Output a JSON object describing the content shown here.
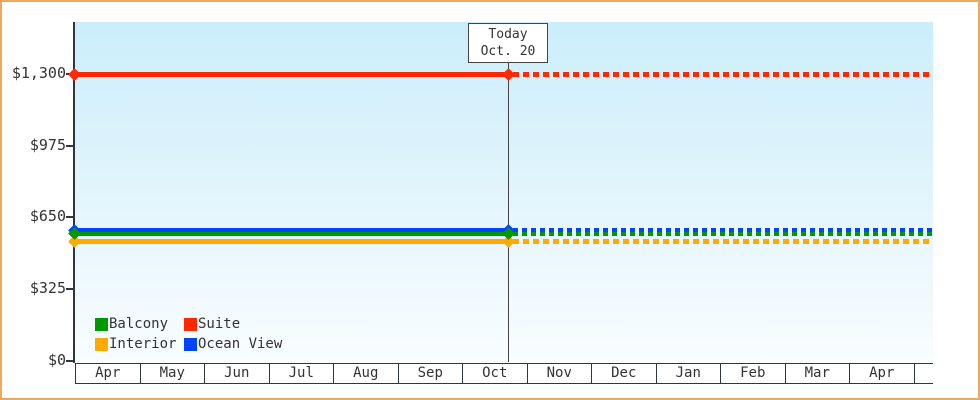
{
  "frame": {
    "border_color": "#efa95f",
    "background": "#ffffff"
  },
  "today_marker": {
    "label": "Today",
    "date": "Oct. 20"
  },
  "y_axis": {
    "tick_labels": [
      "$0",
      "$325",
      "$650",
      "$975",
      "$1,300"
    ],
    "tick_values": [
      0,
      325,
      650,
      975,
      1300
    ]
  },
  "x_axis": {
    "months": [
      "Apr",
      "May",
      "Jun",
      "Jul",
      "Aug",
      "Sep",
      "Oct",
      "Nov",
      "Dec",
      "Jan",
      "Feb",
      "Mar",
      "Apr"
    ]
  },
  "legend": {
    "items": [
      {
        "label": "Balcony",
        "color": "#009900"
      },
      {
        "label": "Suite",
        "color": "#ff2800"
      },
      {
        "label": "Interior",
        "color": "#ffaa00"
      },
      {
        "label": "Ocean View",
        "color": "#0044ff"
      }
    ]
  },
  "chart_data": {
    "type": "line",
    "title": "",
    "x_categories": [
      "Apr",
      "May",
      "Jun",
      "Jul",
      "Aug",
      "Sep",
      "Oct",
      "Nov",
      "Dec",
      "Jan",
      "Feb",
      "Mar",
      "Apr"
    ],
    "y_ticks": [
      0,
      325,
      650,
      975,
      1300
    ],
    "y_tick_labels": [
      "$0",
      "$325",
      "$650",
      "$975",
      "$1,300"
    ],
    "ylim": [
      0,
      1536
    ],
    "grid": false,
    "legend_position": "bottom-left-inside",
    "today": {
      "label": "Today",
      "date": "Oct. 20",
      "month": "Oct",
      "day": 20
    },
    "annotation": "Each series is a flat horizontal price line: solid from Apr to today (Oct. 20), dotted projection from today to next Apr.",
    "series": [
      {
        "name": "Interior",
        "color": "#ffaa00",
        "value": 540,
        "thickness": 5,
        "past_style": "solid",
        "future_style": "dashed",
        "markers_at": [
          "axis-start",
          "today"
        ]
      },
      {
        "name": "Ocean View",
        "color": "#0044ff",
        "value": 590,
        "thickness": 4,
        "past_style": "solid",
        "future_style": "dashed",
        "markers_at": [
          "axis-start",
          "today"
        ]
      },
      {
        "name": "Balcony",
        "color": "#009900",
        "value": 575,
        "thickness": 4,
        "past_style": "solid",
        "future_style": "dashed",
        "markers_at": [
          "axis-start",
          "today"
        ]
      },
      {
        "name": "Suite",
        "color": "#ff2800",
        "value": 1300,
        "thickness": 5,
        "past_style": "solid",
        "future_style": "dashed",
        "markers_at": [
          "axis-start",
          "today"
        ]
      }
    ]
  }
}
